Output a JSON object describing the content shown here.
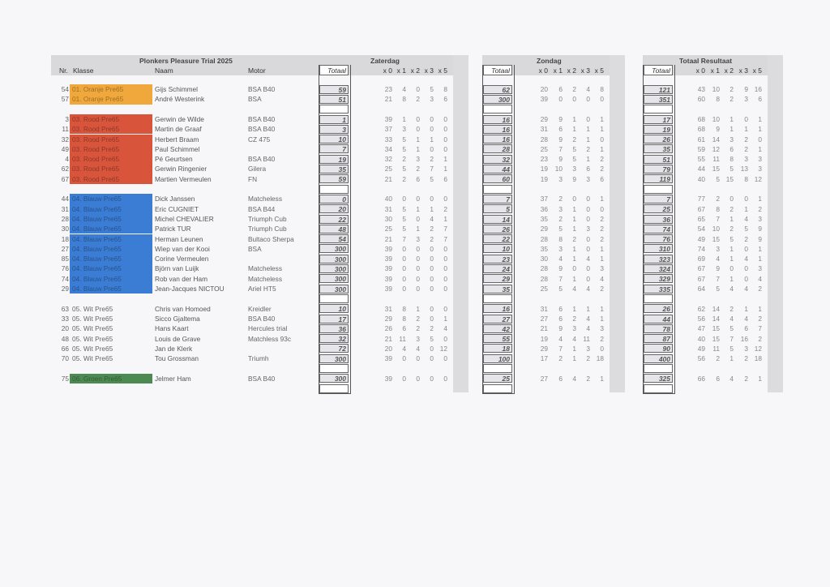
{
  "title": "Plonkers Pleasure Trial 2025",
  "headers": {
    "nr": "Nr.",
    "klasse": "Klasse",
    "naam": "Naam",
    "motor": "Motor",
    "zaterdag": "Zaterdag",
    "zondag": "Zondag",
    "totaal_resultaat": "Totaal Resultaat",
    "totaal": "Totaal",
    "x0": "x 0",
    "x1": "x 1",
    "x2": "x 2",
    "x3": "x 3",
    "x5": "x 5"
  },
  "class_colors": {
    "01. Oranje Pre65": "#f0a83c",
    "03. Rood Pre65": "#d8553c",
    "04. Blauw Pre65": "#3b7dd4",
    "05. Wit Pre65": "",
    "06. Groen Pre65": "#4d8a52"
  },
  "groups": [
    {
      "riders": [
        {
          "nr": "54",
          "klasse": "01. Oranje Pre65",
          "naam": "Gijs Schimmel",
          "motor": "BSA B40",
          "sat": [
            "59",
            "23",
            "4",
            "0",
            "5",
            "8"
          ],
          "sun": [
            "62",
            "20",
            "6",
            "2",
            "4",
            "8"
          ],
          "tot": [
            "121",
            "43",
            "10",
            "2",
            "9",
            "16"
          ]
        },
        {
          "nr": "57",
          "klasse": "01. Oranje Pre65",
          "naam": "André Westerink",
          "motor": "BSA",
          "sat": [
            "51",
            "21",
            "8",
            "2",
            "3",
            "6"
          ],
          "sun": [
            "300",
            "39",
            "0",
            "0",
            "0",
            "0"
          ],
          "tot": [
            "351",
            "60",
            "8",
            "2",
            "3",
            "6"
          ]
        }
      ]
    },
    {
      "riders": [
        {
          "nr": "3",
          "klasse": "03. Rood Pre65",
          "naam": "Gerwin de Wilde",
          "motor": "BSA B40",
          "sat": [
            "1",
            "39",
            "1",
            "0",
            "0",
            "0"
          ],
          "sun": [
            "16",
            "29",
            "9",
            "1",
            "0",
            "1"
          ],
          "tot": [
            "17",
            "68",
            "10",
            "1",
            "0",
            "1"
          ]
        },
        {
          "nr": "11",
          "klasse": "03. Rood Pre65",
          "naam": "Martin de Graaf",
          "motor": "BSA B40",
          "sat": [
            "3",
            "37",
            "3",
            "0",
            "0",
            "0"
          ],
          "sun": [
            "16",
            "31",
            "6",
            "1",
            "1",
            "1"
          ],
          "tot": [
            "19",
            "68",
            "9",
            "1",
            "1",
            "1"
          ]
        },
        {
          "nr": "32",
          "klasse": "03. Rood Pre65",
          "naam": "Herbert Braam",
          "motor": "CZ 475",
          "sat": [
            "10",
            "33",
            "5",
            "1",
            "1",
            "0"
          ],
          "sun": [
            "16",
            "28",
            "9",
            "2",
            "1",
            "0"
          ],
          "tot": [
            "26",
            "61",
            "14",
            "3",
            "2",
            "0"
          ]
        },
        {
          "nr": "49",
          "klasse": "03. Rood Pre65",
          "naam": "Paul Schimmel",
          "motor": "",
          "sat": [
            "7",
            "34",
            "5",
            "1",
            "0",
            "0"
          ],
          "sun": [
            "28",
            "25",
            "7",
            "5",
            "2",
            "1"
          ],
          "tot": [
            "35",
            "59",
            "12",
            "6",
            "2",
            "1"
          ]
        },
        {
          "nr": "4",
          "klasse": "03. Rood Pre65",
          "naam": "Pé Geurtsen",
          "motor": "BSA B40",
          "sat": [
            "19",
            "32",
            "2",
            "3",
            "2",
            "1"
          ],
          "sun": [
            "32",
            "23",
            "9",
            "5",
            "1",
            "2"
          ],
          "tot": [
            "51",
            "55",
            "11",
            "8",
            "3",
            "3"
          ]
        },
        {
          "nr": "62",
          "klasse": "03. Rood Pre65",
          "naam": "Gerwin Ringenier",
          "motor": "Gilera",
          "sat": [
            "35",
            "25",
            "5",
            "2",
            "7",
            "1"
          ],
          "sun": [
            "44",
            "19",
            "10",
            "3",
            "6",
            "2"
          ],
          "tot": [
            "79",
            "44",
            "15",
            "5",
            "13",
            "3"
          ]
        },
        {
          "nr": "67",
          "klasse": "03. Rood Pre65",
          "naam": "Martien Vermeulen",
          "motor": "FN",
          "sat": [
            "59",
            "21",
            "2",
            "6",
            "5",
            "6"
          ],
          "sun": [
            "60",
            "19",
            "3",
            "9",
            "3",
            "6"
          ],
          "tot": [
            "119",
            "40",
            "5",
            "15",
            "8",
            "12"
          ]
        }
      ]
    },
    {
      "riders": [
        {
          "nr": "44",
          "klasse": "04. Blauw Pre65",
          "naam": "Dick Janssen",
          "motor": "Matcheless",
          "sat": [
            "0",
            "40",
            "0",
            "0",
            "0",
            "0"
          ],
          "sun": [
            "7",
            "37",
            "2",
            "0",
            "0",
            "1"
          ],
          "tot": [
            "7",
            "77",
            "2",
            "0",
            "0",
            "1"
          ]
        },
        {
          "nr": "31",
          "klasse": "04. Blauw Pre65",
          "naam": "Eric CUGNIET",
          "motor": "BSA B44",
          "sat": [
            "20",
            "31",
            "5",
            "1",
            "1",
            "2"
          ],
          "sun": [
            "5",
            "36",
            "3",
            "1",
            "0",
            "0"
          ],
          "tot": [
            "25",
            "67",
            "8",
            "2",
            "1",
            "2"
          ]
        },
        {
          "nr": "28",
          "klasse": "04. Blauw Pre65",
          "naam": "Michel CHEVALIER",
          "motor": "Triumph Cub",
          "sat": [
            "22",
            "30",
            "5",
            "0",
            "4",
            "1"
          ],
          "sun": [
            "14",
            "35",
            "2",
            "1",
            "0",
            "2"
          ],
          "tot": [
            "36",
            "65",
            "7",
            "1",
            "4",
            "3"
          ]
        },
        {
          "nr": "30",
          "klasse": "04. Blauw Pre65",
          "naam": "Patrick TUR",
          "motor": "Triumph Cub",
          "sat": [
            "48",
            "25",
            "5",
            "1",
            "2",
            "7"
          ],
          "sun": [
            "26",
            "29",
            "5",
            "1",
            "3",
            "2"
          ],
          "tot": [
            "74",
            "54",
            "10",
            "2",
            "5",
            "9"
          ]
        },
        {
          "nr": "18",
          "klasse": "04. Blauw Pre65",
          "naam": "Herman Leunen",
          "motor": "Bultaco Sherpa",
          "sat": [
            "54",
            "21",
            "7",
            "3",
            "2",
            "7"
          ],
          "sun": [
            "22",
            "28",
            "8",
            "2",
            "0",
            "2"
          ],
          "tot": [
            "76",
            "49",
            "15",
            "5",
            "2",
            "9"
          ]
        },
        {
          "nr": "27",
          "klasse": "04. Blauw Pre65",
          "naam": "Wiep van der Kooi",
          "motor": "BSA",
          "sat": [
            "300",
            "39",
            "0",
            "0",
            "0",
            "0"
          ],
          "sun": [
            "10",
            "35",
            "3",
            "1",
            "0",
            "1"
          ],
          "tot": [
            "310",
            "74",
            "3",
            "1",
            "0",
            "1"
          ]
        },
        {
          "nr": "85",
          "klasse": "04. Blauw Pre65",
          "naam": "Corine Vermeulen",
          "motor": "",
          "sat": [
            "300",
            "39",
            "0",
            "0",
            "0",
            "0"
          ],
          "sun": [
            "23",
            "30",
            "4",
            "1",
            "4",
            "1"
          ],
          "tot": [
            "323",
            "69",
            "4",
            "1",
            "4",
            "1"
          ]
        },
        {
          "nr": "76",
          "klasse": "04. Blauw Pre65",
          "naam": "Björn van Luijk",
          "motor": "Matcheless",
          "sat": [
            "300",
            "39",
            "0",
            "0",
            "0",
            "0"
          ],
          "sun": [
            "24",
            "28",
            "9",
            "0",
            "0",
            "3"
          ],
          "tot": [
            "324",
            "67",
            "9",
            "0",
            "0",
            "3"
          ]
        },
        {
          "nr": "74",
          "klasse": "04. Blauw Pre65",
          "naam": "Rob van der Ham",
          "motor": "Matcheless",
          "sat": [
            "300",
            "39",
            "0",
            "0",
            "0",
            "0"
          ],
          "sun": [
            "29",
            "28",
            "7",
            "1",
            "0",
            "4"
          ],
          "tot": [
            "329",
            "67",
            "7",
            "1",
            "0",
            "4"
          ]
        },
        {
          "nr": "29",
          "klasse": "04. Blauw Pre65",
          "naam": "Jean-Jacques NICTOU",
          "motor": "Ariel HT5",
          "sat": [
            "300",
            "39",
            "0",
            "0",
            "0",
            "0"
          ],
          "sun": [
            "35",
            "25",
            "5",
            "4",
            "4",
            "2"
          ],
          "tot": [
            "335",
            "64",
            "5",
            "4",
            "4",
            "2"
          ]
        }
      ]
    },
    {
      "riders": [
        {
          "nr": "63",
          "klasse": "05. Wit Pre65",
          "naam": "Chris van Homoed",
          "motor": "Kreidler",
          "sat": [
            "10",
            "31",
            "8",
            "1",
            "0",
            "0"
          ],
          "sun": [
            "16",
            "31",
            "6",
            "1",
            "1",
            "1"
          ],
          "tot": [
            "26",
            "62",
            "14",
            "2",
            "1",
            "1"
          ]
        },
        {
          "nr": "33",
          "klasse": "05. Wit Pre65",
          "naam": "Sicco Gjaltema",
          "motor": "BSA B40",
          "sat": [
            "17",
            "29",
            "8",
            "2",
            "0",
            "1"
          ],
          "sun": [
            "27",
            "27",
            "6",
            "2",
            "4",
            "1"
          ],
          "tot": [
            "44",
            "56",
            "14",
            "4",
            "4",
            "2"
          ]
        },
        {
          "nr": "20",
          "klasse": "05. Wit Pre65",
          "naam": "Hans Kaart",
          "motor": "Hercules trial",
          "sat": [
            "36",
            "26",
            "6",
            "2",
            "2",
            "4"
          ],
          "sun": [
            "42",
            "21",
            "9",
            "3",
            "4",
            "3"
          ],
          "tot": [
            "78",
            "47",
            "15",
            "5",
            "6",
            "7"
          ]
        },
        {
          "nr": "48",
          "klasse": "05. Wit Pre65",
          "naam": "Louis de Grave",
          "motor": "Matchless 93c",
          "sat": [
            "32",
            "21",
            "11",
            "3",
            "5",
            "0"
          ],
          "sun": [
            "55",
            "19",
            "4",
            "4",
            "11",
            "2"
          ],
          "tot": [
            "87",
            "40",
            "15",
            "7",
            "16",
            "2"
          ]
        },
        {
          "nr": "66",
          "klasse": "05. Wit Pre65",
          "naam": "Jan de Klerk",
          "motor": "",
          "sat": [
            "72",
            "20",
            "4",
            "4",
            "0",
            "12"
          ],
          "sun": [
            "18",
            "29",
            "7",
            "1",
            "3",
            "0"
          ],
          "tot": [
            "90",
            "49",
            "11",
            "5",
            "3",
            "12"
          ]
        },
        {
          "nr": "70",
          "klasse": "05. Wit Pre65",
          "naam": "Tou Grossman",
          "motor": "Triumh",
          "sat": [
            "300",
            "39",
            "0",
            "0",
            "0",
            "0"
          ],
          "sun": [
            "100",
            "17",
            "2",
            "1",
            "2",
            "18"
          ],
          "tot": [
            "400",
            "56",
            "2",
            "1",
            "2",
            "18"
          ]
        }
      ]
    },
    {
      "riders": [
        {
          "nr": "75",
          "klasse": "06. Groen Pre65",
          "naam": "Jelmer Ham",
          "motor": "BSA B40",
          "sat": [
            "300",
            "39",
            "0",
            "0",
            "0",
            "0"
          ],
          "sun": [
            "25",
            "27",
            "6",
            "4",
            "2",
            "1"
          ],
          "tot": [
            "325",
            "66",
            "6",
            "4",
            "2",
            "1"
          ]
        }
      ]
    }
  ]
}
